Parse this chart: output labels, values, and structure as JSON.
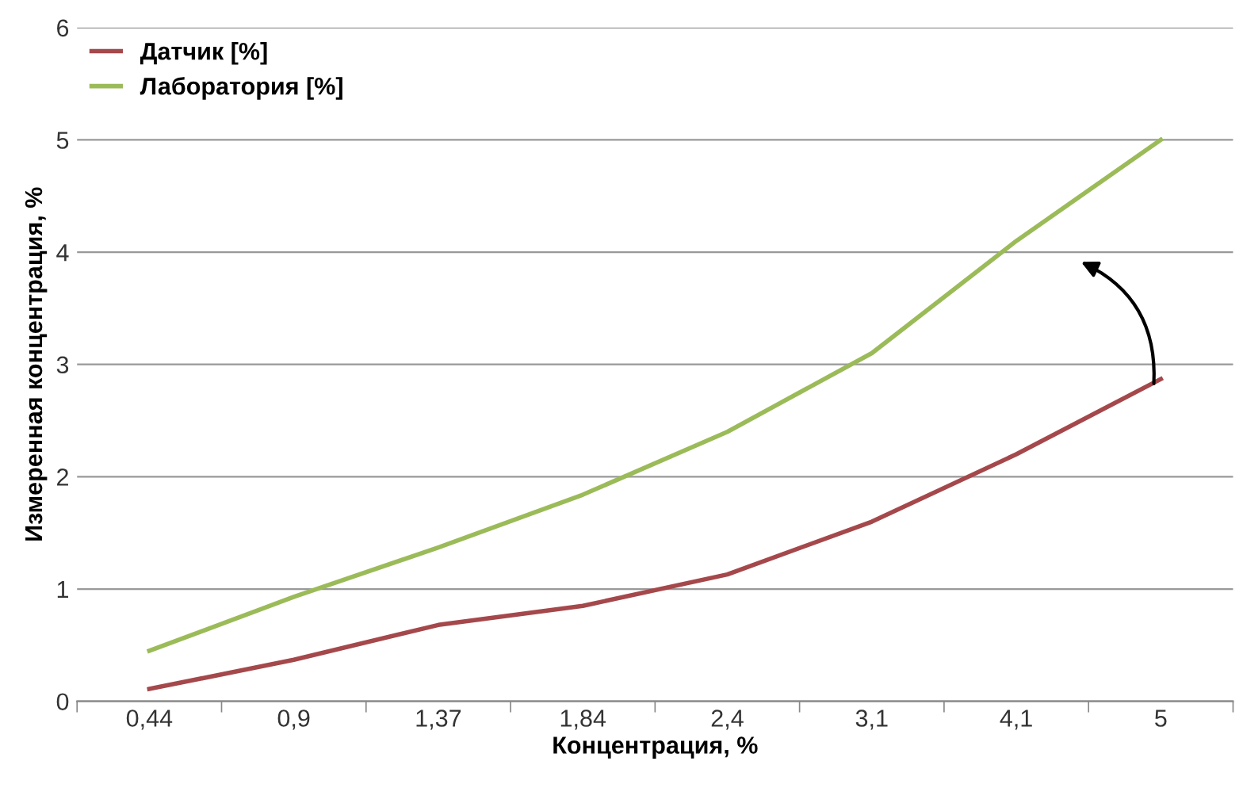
{
  "chart_data": {
    "type": "line",
    "xlabel": "Концентрация, %",
    "ylabel": "Измеренная концентрация, %",
    "categories": [
      "0,44",
      "0,9",
      "1,37",
      "1,84",
      "2,4",
      "3,1",
      "4,1",
      "5"
    ],
    "series": [
      {
        "name": "Датчик [%]",
        "color": "#a5484b",
        "values": [
          0.11,
          0.37,
          0.68,
          0.85,
          1.13,
          1.6,
          2.2,
          2.87
        ]
      },
      {
        "name": "Лаборатория [%]",
        "color": "#9bbb59",
        "values": [
          0.45,
          0.93,
          1.37,
          1.84,
          2.4,
          3.1,
          4.1,
          5.0
        ]
      }
    ],
    "ylim": [
      0,
      6
    ],
    "yticks": [
      0,
      1,
      2,
      3,
      4,
      5,
      6
    ],
    "grid": "y",
    "legend": "top left",
    "marker": "none",
    "line_style": "solid"
  }
}
